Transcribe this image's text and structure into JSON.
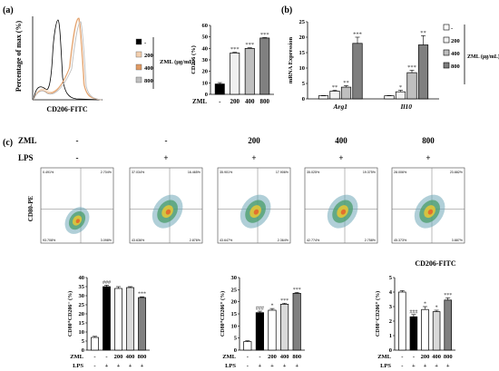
{
  "panel_labels": {
    "a": "(a)",
    "b": "(b)",
    "c": "(c)"
  },
  "hist": {
    "ylabel": "Percentage of max (%)",
    "xlabel": "CD206-FITC",
    "legend_title": "ZML (μg/mL)",
    "legend": [
      "-",
      "200",
      "400",
      "800"
    ],
    "colors": [
      "#000000",
      "#f3cfae",
      "#e09a63",
      "#bfbfbf"
    ]
  },
  "flow": {
    "top_labels": {
      "zml": "ZML",
      "lps": "LPS"
    },
    "zml_values": [
      "-",
      "-",
      "200",
      "400",
      "800"
    ],
    "lps_values": [
      "-",
      "+",
      "+",
      "+",
      "+"
    ],
    "ylabel": "CD80-PE",
    "xlabel": "CD206-FITC",
    "plots": [
      {
        "tl": "0.491%",
        "tr": "2.704%",
        "bl": "93.708%",
        "br": "3.098%"
      },
      {
        "tl": "37.034%",
        "tr": "16.465%",
        "bl": "43.636%",
        "br": "2.876%"
      },
      {
        "tl": "35.901%",
        "tr": "17.906%",
        "bl": "43.647%",
        "br": "2.364%"
      },
      {
        "tl": "35.025%",
        "tr": "19.375%",
        "bl": "42.774%",
        "br": "2.758%"
      },
      {
        "tl": "28.006%",
        "tr": "23.882%",
        "bl": "45.373%",
        "br": "3.887%"
      }
    ]
  },
  "chart_data": [
    {
      "type": "bar",
      "panel": "a",
      "categories": [
        "-",
        "200",
        "400",
        "800"
      ],
      "values": [
        9,
        36,
        40,
        49
      ],
      "errors": [
        1.2,
        0.6,
        0.5,
        0.4
      ],
      "sig": [
        "",
        "***",
        "***",
        "***"
      ],
      "ylabel": "CD206 (%)",
      "xlabel": "ZML",
      "ylim": [
        0,
        60
      ],
      "yticks": [
        0,
        10,
        20,
        30,
        40,
        50,
        60
      ],
      "colors": [
        "#000000",
        "#f0f0f0",
        "#bfbfbf",
        "#808080"
      ]
    },
    {
      "type": "bar",
      "panel": "b",
      "ylabel": "mRNA Expression",
      "ylim": [
        0,
        25
      ],
      "yticks": [
        0,
        5,
        10,
        15,
        20,
        25
      ],
      "legend_title": "ZML (μg/mL)",
      "legend_labels": [
        "-",
        "200",
        "400",
        "800"
      ],
      "categories": [
        "Arg1",
        "Il10"
      ],
      "series": [
        {
          "name": "-",
          "values": [
            1,
            1
          ],
          "errors": [
            0.1,
            0.1
          ],
          "sig": [
            "",
            ""
          ],
          "color": "#ffffff"
        },
        {
          "name": "200",
          "values": [
            2.5,
            2.3
          ],
          "errors": [
            0.3,
            0.5
          ],
          "sig": [
            "**",
            "*"
          ],
          "color": "#f2f2f2"
        },
        {
          "name": "400",
          "values": [
            3.8,
            8.5
          ],
          "errors": [
            0.5,
            0.8
          ],
          "sig": [
            "**",
            "***"
          ],
          "color": "#bfbfbf"
        },
        {
          "name": "800",
          "values": [
            18,
            17.5
          ],
          "errors": [
            2,
            3
          ],
          "sig": [
            "***",
            "**"
          ],
          "color": "#7f7f7f"
        }
      ]
    },
    {
      "type": "bar",
      "panel": "c1",
      "zml": [
        "-",
        "-",
        "200",
        "400",
        "800"
      ],
      "lps": [
        "-",
        "+",
        "+",
        "+",
        "+"
      ],
      "row_labels": [
        "ZML",
        "LPS"
      ],
      "values": [
        7,
        35,
        34,
        34.5,
        29
      ],
      "errors": [
        0.6,
        0.8,
        1.0,
        0.5,
        0.4
      ],
      "sig": [
        "",
        "###",
        "",
        "",
        "***"
      ],
      "ylabel": "CD80⁺CD206⁻ (%)",
      "ylim": [
        0,
        40
      ],
      "yticks": [
        0,
        5,
        10,
        15,
        20,
        25,
        30,
        35,
        40
      ],
      "colors": [
        "#ffffff",
        "#000000",
        "#ffffff",
        "#d9d9d9",
        "#808080"
      ]
    },
    {
      "type": "bar",
      "panel": "c2",
      "zml": [
        "-",
        "-",
        "200",
        "400",
        "800"
      ],
      "lps": [
        "-",
        "+",
        "+",
        "+",
        "+"
      ],
      "row_labels": [
        "ZML",
        "LPS"
      ],
      "values": [
        3.5,
        15.5,
        16.5,
        19,
        23.5
      ],
      "errors": [
        0.4,
        0.6,
        0.7,
        0.4,
        0.4
      ],
      "sig": [
        "",
        "###",
        "*",
        "***",
        "***"
      ],
      "ylabel": "CD80⁺CD206⁺ (%)",
      "ylim": [
        0,
        30
      ],
      "yticks": [
        0,
        5,
        10,
        15,
        20,
        25,
        30
      ],
      "colors": [
        "#ffffff",
        "#000000",
        "#ffffff",
        "#d9d9d9",
        "#808080"
      ]
    },
    {
      "type": "bar",
      "panel": "c3",
      "zml": [
        "-",
        "-",
        "200",
        "400",
        "800"
      ],
      "lps": [
        "-",
        "+",
        "+",
        "+",
        "+"
      ],
      "row_labels": [
        "ZML",
        "LPS"
      ],
      "values": [
        4.0,
        2.3,
        2.8,
        2.65,
        3.45
      ],
      "errors": [
        0.1,
        0.15,
        0.2,
        0.1,
        0.15
      ],
      "sig": [
        "",
        "###",
        "*",
        "*",
        "***"
      ],
      "ylabel": "CD80⁻CD206⁺ (%)",
      "ylim": [
        0,
        5
      ],
      "yticks": [
        0,
        1,
        2,
        3,
        4,
        5
      ],
      "colors": [
        "#ffffff",
        "#000000",
        "#ffffff",
        "#d9d9d9",
        "#808080"
      ]
    }
  ]
}
